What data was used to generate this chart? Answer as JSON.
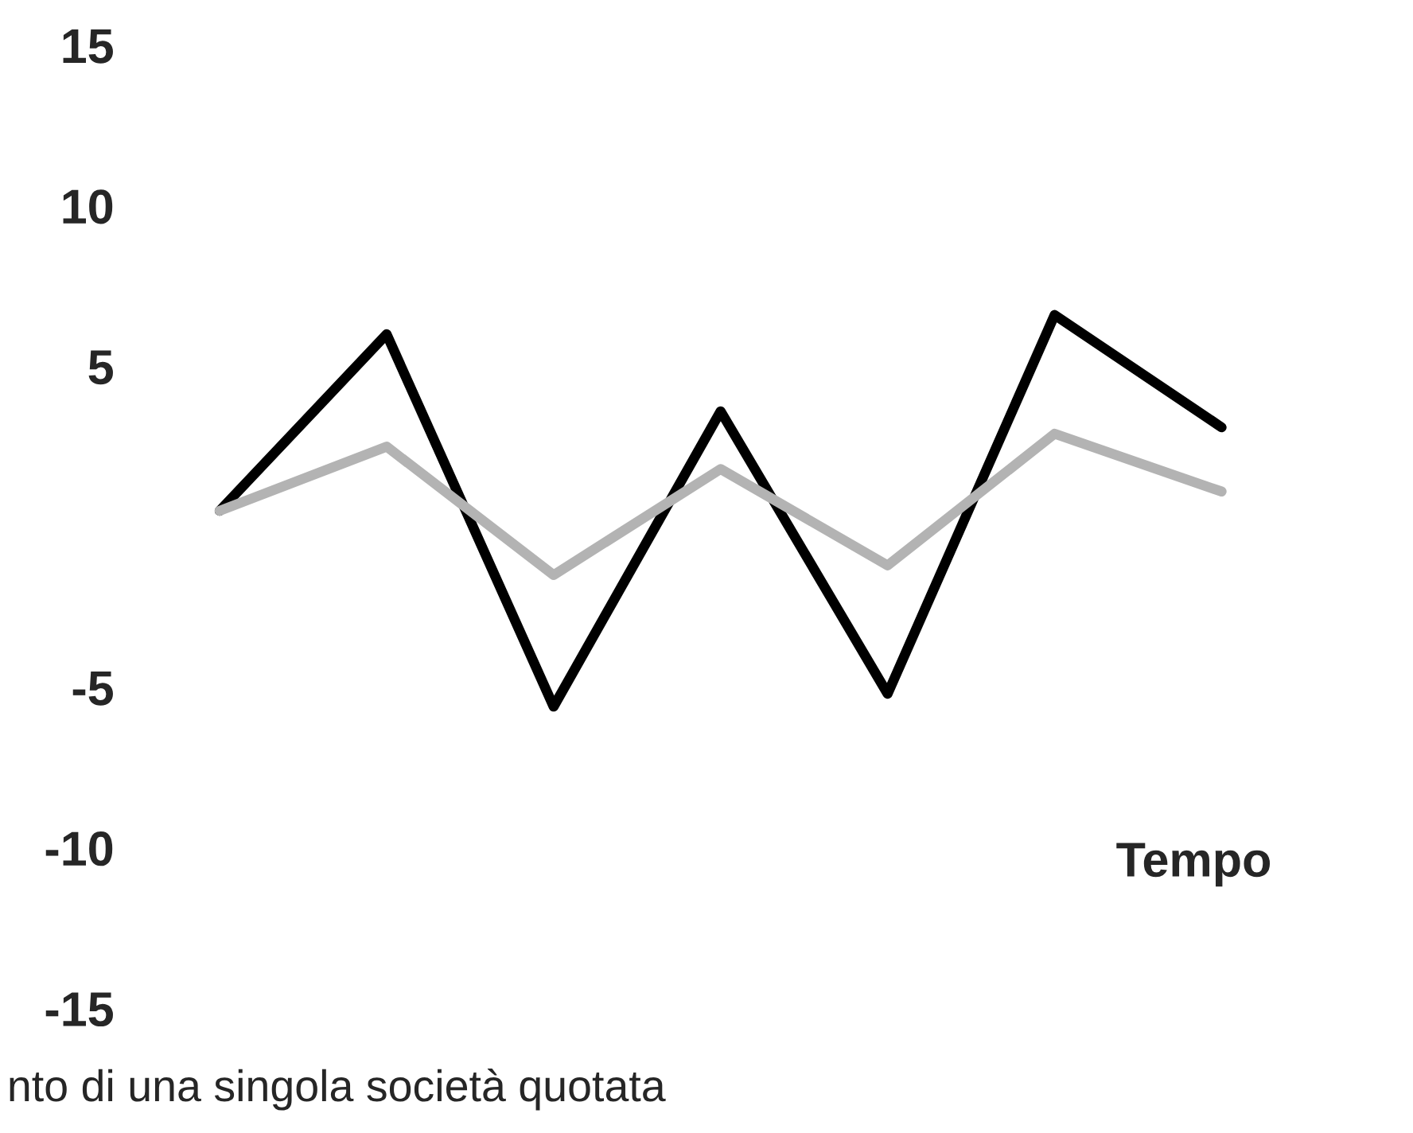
{
  "chart_data": {
    "type": "line",
    "xlabel": "Tempo",
    "categories": [
      null,
      null,
      null,
      null,
      null,
      null,
      null
    ],
    "series": [
      {
        "color": "#000000",
        "values": [
          0.5,
          6.0,
          -5.6,
          3.6,
          -5.2,
          6.6,
          3.1
        ]
      },
      {
        "color": "#b3b3b3",
        "values": [
          0.5,
          2.5,
          -1.5,
          1.8,
          -1.2,
          2.9,
          1.1
        ]
      }
    ],
    "ylim": [
      -15,
      15
    ],
    "yticks": [
      15,
      10,
      5,
      -5,
      -10,
      -15
    ],
    "grid": false,
    "legend": false,
    "marker": "none",
    "line_style": "solid",
    "annotations": [
      "nto di una singola società quotata"
    ]
  }
}
